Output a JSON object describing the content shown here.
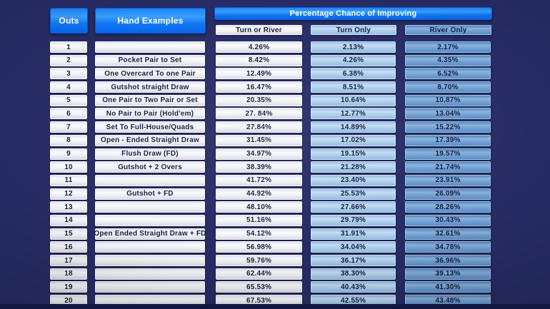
{
  "colors": {
    "background": "#272c66",
    "header_blue_top": "#3c9fff",
    "header_blue_bottom": "#0765e9",
    "cell_light": "#f0f2f6",
    "cell_turn_only": "#abcdec",
    "cell_river_only": "#6f9fd2",
    "text_dark": "#151c40",
    "text_light": "#ffffff",
    "bottom_band": "#121740"
  },
  "chart_data": {
    "type": "table",
    "outs_label": "Outs",
    "hand_examples_label": "Hand Examples",
    "group_header": "Percentage Chance of Improving",
    "columns": [
      "Turn or River",
      "Turn Only",
      "River Only"
    ],
    "rows": [
      {
        "outs": "1",
        "hand": "",
        "tor": "4.26%",
        "to": "2.13%",
        "ro": "2.17%"
      },
      {
        "outs": "2",
        "hand": "Pocket Pair to Set",
        "tor": "8.42%",
        "to": "4.26%",
        "ro": "4.35%"
      },
      {
        "outs": "3",
        "hand": "One Overcard To one Pair",
        "tor": "12.49%",
        "to": "6.38%",
        "ro": "6.52%"
      },
      {
        "outs": "4",
        "hand": "Gutshot straight Draw",
        "tor": "16.47%",
        "to": "8.51%",
        "ro": "8.70%"
      },
      {
        "outs": "5",
        "hand": "One Pair to Two Pair or Set",
        "tor": "20.35%",
        "to": "10.64%",
        "ro": "10.87%"
      },
      {
        "outs": "6",
        "hand": "No Pair to Pair (Hold'em)",
        "tor": "27. 84%",
        "to": "12.77%",
        "ro": "13.04%"
      },
      {
        "outs": "7",
        "hand": "Set To Full-House/Quads",
        "tor": "27.84%",
        "to": "14.89%",
        "ro": "15.22%"
      },
      {
        "outs": "8",
        "hand": "Open - Ended Straight Draw",
        "tor": "31.45%",
        "to": "17.02%",
        "ro": "17.39%"
      },
      {
        "outs": "9",
        "hand": "Flush Draw (FD)",
        "tor": "34.97%",
        "to": "19.15%",
        "ro": "19.57%"
      },
      {
        "outs": "10",
        "hand": "Gutshot + 2 Overs",
        "tor": "38.39%",
        "to": "21.28%",
        "ro": "21.74%"
      },
      {
        "outs": "11",
        "hand": "",
        "tor": "41.72%",
        "to": "23.40%",
        "ro": "23.91%"
      },
      {
        "outs": "12",
        "hand": "Gutshot + FD",
        "tor": "44.92%",
        "to": "25.53%",
        "ro": "26.09%"
      },
      {
        "outs": "13",
        "hand": "",
        "tor": "48.10%",
        "to": "27.66%",
        "ro": "28.26%"
      },
      {
        "outs": "14",
        "hand": "",
        "tor": "51.16%",
        "to": "29.79%",
        "ro": "30.43%"
      },
      {
        "outs": "15",
        "hand": "Open Ended Straight Draw + FD",
        "tor": "54.12%",
        "to": "31.91%",
        "ro": "32.61%"
      },
      {
        "outs": "16",
        "hand": "",
        "tor": "56.98%",
        "to": "34.04%",
        "ro": "34.78%"
      },
      {
        "outs": "17",
        "hand": "",
        "tor": "59.76%",
        "to": "36.17%",
        "ro": "36.96%"
      },
      {
        "outs": "18",
        "hand": "",
        "tor": "62.44%",
        "to": "38.30%",
        "ro": "39.13%"
      },
      {
        "outs": "19",
        "hand": "",
        "tor": "65.53%",
        "to": "40.43%",
        "ro": "41.30%"
      },
      {
        "outs": "20",
        "hand": "",
        "tor": "67.53%",
        "to": "42.55%",
        "ro": "43.48%"
      }
    ]
  }
}
